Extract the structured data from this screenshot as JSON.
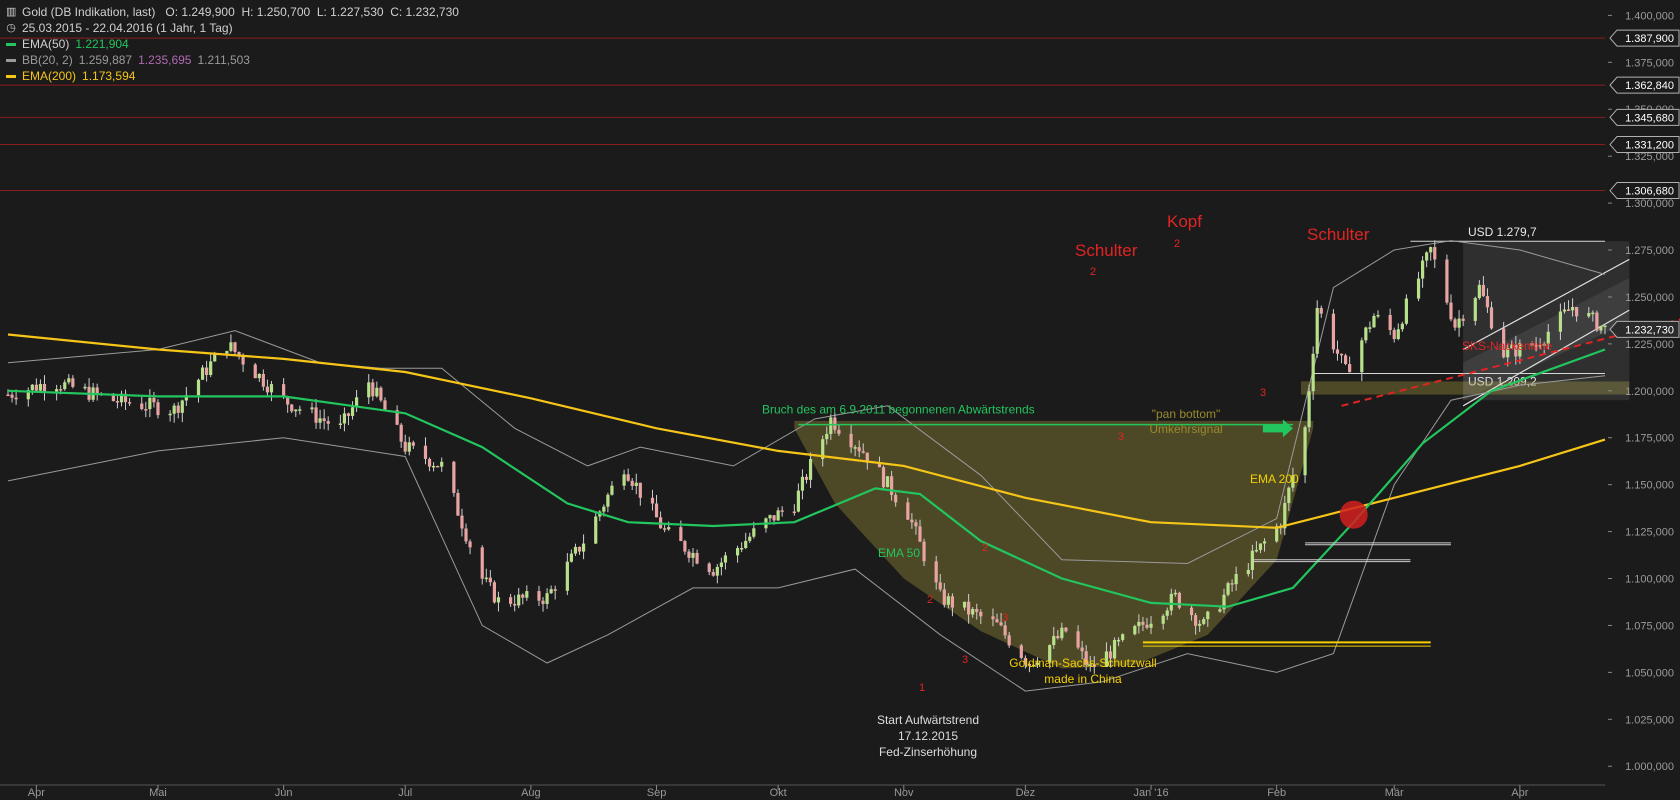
{
  "header": {
    "title": "Gold (DB Indikation, last)",
    "ohlc": "O: 1.249,900  H: 1.250,700  L: 1.227,530  C: 1.232,730",
    "range": "25.03.2015 - 22.04.2016 (1 Jahr, 1 Tag)",
    "indicators": [
      {
        "label": "EMA(50)",
        "values": [
          "1.221,904"
        ],
        "color": "#22c55e"
      },
      {
        "label": "BB(20, 2)",
        "values": [
          "1.259,887",
          "1.235,695",
          "1.211,503"
        ],
        "color": "#9a9a9a"
      },
      {
        "label": "EMA(200)",
        "values": [
          "1.173,594"
        ],
        "color": "#f5c518"
      }
    ]
  },
  "colors": {
    "background": "#1c1b1b",
    "candle_up": "#b7e08a",
    "candle_down": "#e8a3a3",
    "ema50": "#22c55e",
    "ema200": "#f5c518",
    "bollinger": "#9a9a9a",
    "annotation_red": "#e02424",
    "annotation_green": "#22c55e",
    "annotation_yellow": "#f5d000",
    "annotation_olive": "#9a8a2c",
    "resistance_line": "#8b1d1d"
  },
  "chart_data": {
    "type": "candlestick",
    "y_axis": {
      "min": 990,
      "max": 1405,
      "side": "right",
      "ticks": [
        1000,
        1025,
        1050,
        1075,
        1100,
        1125,
        1150,
        1175,
        1200,
        1225,
        1250,
        1275,
        1300,
        1325,
        1350,
        1375,
        1400
      ],
      "tick_labels": [
        "1.000,000",
        "1.025,000",
        "1.050,000",
        "1.075,000",
        "1.100,000",
        "1.125,000",
        "1.150,000",
        "1.175,000",
        "1.200,000",
        "1.225,000",
        "1.250,000",
        "1.275,000",
        "1.300,000",
        "1.325,000",
        "1.350,000",
        "1.375,000",
        "1.400,000"
      ]
    },
    "x_axis": {
      "start": "2015-03-25",
      "end": "2016-04-22",
      "ticks": [
        {
          "date": "2015-04-01",
          "label": "Apr"
        },
        {
          "date": "2015-05-01",
          "label": "Mai"
        },
        {
          "date": "2015-06-01",
          "label": "Jun"
        },
        {
          "date": "2015-07-01",
          "label": "Jul"
        },
        {
          "date": "2015-08-01",
          "label": "Aug"
        },
        {
          "date": "2015-09-01",
          "label": "Sep"
        },
        {
          "date": "2015-10-01",
          "label": "Okt"
        },
        {
          "date": "2015-11-01",
          "label": "Nov"
        },
        {
          "date": "2015-12-01",
          "label": "Dez"
        },
        {
          "date": "2016-01-01",
          "label": "Jan '16"
        },
        {
          "date": "2016-02-01",
          "label": "Feb"
        },
        {
          "date": "2016-03-01",
          "label": "Mär"
        },
        {
          "date": "2016-04-01",
          "label": "Apr"
        }
      ]
    },
    "anchors": [
      [
        "2015-03-25",
        1198
      ],
      [
        "2015-04-05",
        1205
      ],
      [
        "2015-04-20",
        1195
      ],
      [
        "2015-05-05",
        1190
      ],
      [
        "2015-05-18",
        1225
      ],
      [
        "2015-06-01",
        1195
      ],
      [
        "2015-06-15",
        1180
      ],
      [
        "2015-06-22",
        1205
      ],
      [
        "2015-07-01",
        1170
      ],
      [
        "2015-07-10",
        1160
      ],
      [
        "2015-07-20",
        1100
      ],
      [
        "2015-07-24",
        1088
      ],
      [
        "2015-08-05",
        1090
      ],
      [
        "2015-08-14",
        1120
      ],
      [
        "2015-08-24",
        1160
      ],
      [
        "2015-09-03",
        1125
      ],
      [
        "2015-09-15",
        1105
      ],
      [
        "2015-09-28",
        1130
      ],
      [
        "2015-10-05",
        1140
      ],
      [
        "2015-10-14",
        1185
      ],
      [
        "2015-10-22",
        1168
      ],
      [
        "2015-11-02",
        1135
      ],
      [
        "2015-11-10",
        1090
      ],
      [
        "2015-11-24",
        1075
      ],
      [
        "2015-12-02",
        1055
      ],
      [
        "2015-12-11",
        1072
      ],
      [
        "2015-12-17",
        1052
      ],
      [
        "2015-12-28",
        1072
      ],
      [
        "2016-01-07",
        1090
      ],
      [
        "2016-01-14",
        1075
      ],
      [
        "2016-01-22",
        1100
      ],
      [
        "2016-02-02",
        1130
      ],
      [
        "2016-02-08",
        1180
      ],
      [
        "2016-02-11",
        1245
      ],
      [
        "2016-02-18",
        1210
      ],
      [
        "2016-02-25",
        1240
      ],
      [
        "2016-03-01",
        1230
      ],
      [
        "2016-03-10",
        1275
      ],
      [
        "2016-03-16",
        1235
      ],
      [
        "2016-03-22",
        1255
      ],
      [
        "2016-03-28",
        1220
      ],
      [
        "2016-04-05",
        1225
      ],
      [
        "2016-04-14",
        1245
      ],
      [
        "2016-04-22",
        1233
      ]
    ],
    "ema50_points": [
      [
        "2015-03-25",
        1200
      ],
      [
        "2015-05-01",
        1197
      ],
      [
        "2015-06-01",
        1197
      ],
      [
        "2015-07-01",
        1188
      ],
      [
        "2015-07-20",
        1170
      ],
      [
        "2015-08-10",
        1140
      ],
      [
        "2015-08-25",
        1130
      ],
      [
        "2015-09-15",
        1128
      ],
      [
        "2015-10-05",
        1130
      ],
      [
        "2015-10-25",
        1148
      ],
      [
        "2015-11-05",
        1145
      ],
      [
        "2015-11-20",
        1120
      ],
      [
        "2015-12-10",
        1100
      ],
      [
        "2016-01-01",
        1087
      ],
      [
        "2016-01-20",
        1085
      ],
      [
        "2016-02-05",
        1095
      ],
      [
        "2016-02-20",
        1130
      ],
      [
        "2016-03-08",
        1172
      ],
      [
        "2016-03-25",
        1200
      ],
      [
        "2016-04-22",
        1222
      ]
    ],
    "ema200_points": [
      [
        "2015-03-25",
        1230
      ],
      [
        "2015-05-01",
        1222
      ],
      [
        "2015-06-01",
        1217
      ],
      [
        "2015-07-01",
        1210
      ],
      [
        "2015-08-01",
        1196
      ],
      [
        "2015-09-01",
        1180
      ],
      [
        "2015-10-01",
        1168
      ],
      [
        "2015-11-01",
        1160
      ],
      [
        "2015-12-01",
        1143
      ],
      [
        "2016-01-01",
        1130
      ],
      [
        "2016-02-01",
        1127
      ],
      [
        "2016-03-01",
        1143
      ],
      [
        "2016-04-01",
        1160
      ],
      [
        "2016-04-22",
        1174
      ]
    ],
    "bb_upper": [
      [
        "2015-03-25",
        1215
      ],
      [
        "2015-05-01",
        1222
      ],
      [
        "2015-05-20",
        1232
      ],
      [
        "2015-06-10",
        1215
      ],
      [
        "2015-06-25",
        1212
      ],
      [
        "2015-07-10",
        1212
      ],
      [
        "2015-07-28",
        1180
      ],
      [
        "2015-08-15",
        1160
      ],
      [
        "2015-08-28",
        1170
      ],
      [
        "2015-09-20",
        1160
      ],
      [
        "2015-10-10",
        1185
      ],
      [
        "2015-10-28",
        1192
      ],
      [
        "2015-11-20",
        1155
      ],
      [
        "2015-12-10",
        1110
      ],
      [
        "2016-01-10",
        1108
      ],
      [
        "2016-02-01",
        1132
      ],
      [
        "2016-02-15",
        1255
      ],
      [
        "2016-03-01",
        1275
      ],
      [
        "2016-03-15",
        1280
      ],
      [
        "2016-04-01",
        1275
      ],
      [
        "2016-04-22",
        1262
      ]
    ],
    "bb_lower": [
      [
        "2015-03-25",
        1152
      ],
      [
        "2015-05-01",
        1168
      ],
      [
        "2015-06-01",
        1175
      ],
      [
        "2015-07-01",
        1165
      ],
      [
        "2015-07-20",
        1075
      ],
      [
        "2015-08-05",
        1055
      ],
      [
        "2015-08-20",
        1070
      ],
      [
        "2015-09-10",
        1095
      ],
      [
        "2015-10-01",
        1095
      ],
      [
        "2015-10-20",
        1105
      ],
      [
        "2015-11-10",
        1070
      ],
      [
        "2015-12-01",
        1040
      ],
      [
        "2015-12-20",
        1045
      ],
      [
        "2016-01-10",
        1060
      ],
      [
        "2016-02-01",
        1050
      ],
      [
        "2016-02-15",
        1060
      ],
      [
        "2016-03-01",
        1150
      ],
      [
        "2016-03-15",
        1195
      ],
      [
        "2016-04-01",
        1203
      ],
      [
        "2016-04-22",
        1208
      ]
    ],
    "price_markers": [
      {
        "value": 1387.9,
        "label": "1.387,900"
      },
      {
        "value": 1362.84,
        "label": "1.362,840"
      },
      {
        "value": 1345.68,
        "label": "1.345,680"
      },
      {
        "value": 1331.2,
        "label": "1.331,200"
      },
      {
        "value": 1306.68,
        "label": "1.306,680"
      },
      {
        "value": 1232.73,
        "label": "1.232,730"
      }
    ],
    "levels": [
      {
        "value": 1279.7,
        "label": "USD 1.279,7",
        "from": "2016-03-05"
      },
      {
        "value": 1209.2,
        "label": "USD 1.209,2",
        "from": "2016-02-10"
      }
    ],
    "neckline": {
      "from": [
        "2016-02-17",
        1192
      ],
      "to": [
        "2016-06-05",
        1252
      ],
      "label": "SKS-Nackenlinie"
    }
  },
  "annotations": {
    "left_shoulder": "Schulter",
    "head": "Kopf",
    "right_shoulder": "Schulter",
    "breakout": "Bruch des am 6.9.2011 begonnenen Abwärtstrends",
    "pan_bottom": "\"pan bottom\" Umkehrsignal",
    "ema200": "EMA 200",
    "ema50": "EMA 50",
    "goldman": "Goldman-Sachs-Schutzwall made in China",
    "start": "Start Aufwärtstrend 17.12.2015 Fed-Zinserhöhung",
    "numbers": [
      "1",
      "2",
      "3",
      "2",
      "3",
      "2",
      "3",
      "2",
      "3"
    ]
  }
}
